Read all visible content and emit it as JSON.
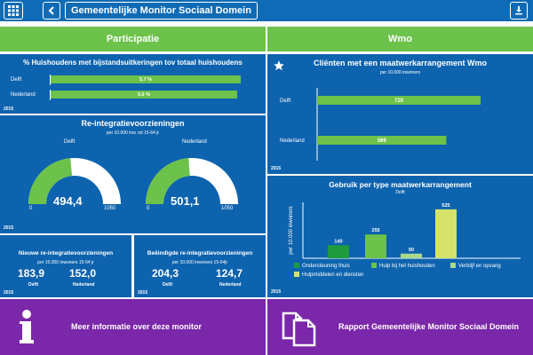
{
  "header": {
    "title": "Gemeentelijke Monitor Sociaal Domein",
    "menu_icon": "grid-icon",
    "back_icon": "chevron-left-icon",
    "download_icon": "download-icon"
  },
  "sections": {
    "participatie": "Participatie",
    "wmo": "Wmo"
  },
  "huishoudens": {
    "title": "% Huishoudens met bijstandsuitkeringen tov totaal huishoudens",
    "year": "2015",
    "rows": [
      {
        "label": "Delft",
        "value": "5,7 %",
        "fraction": 0.057
      },
      {
        "label": "Nederland",
        "value": "5,6 %",
        "fraction": 0.056
      }
    ]
  },
  "reintegratie": {
    "title": "Re-integratievoorzieningen",
    "subtitle": "per 10.000 inw. tot 15-64 jr",
    "year": "2015",
    "gauges": [
      {
        "name": "Delft",
        "value": "494,4",
        "numeric": 494.4,
        "min": "0",
        "max": "1050"
      },
      {
        "name": "Nederland",
        "value": "501,1",
        "numeric": 501.1,
        "min": "0",
        "max": "1050"
      }
    ]
  },
  "nieuwe": {
    "title": "Nieuwe re-integratievoorzieningen",
    "subtitle": "per 10.000 inwoners 15-64 jr",
    "year": "2015",
    "values": [
      {
        "value": "183,9",
        "label": "Delft"
      },
      {
        "value": "152,0",
        "label": "Nederland"
      }
    ]
  },
  "beeindigde": {
    "title": "Beëindigde re-integratievoorzieningen",
    "subtitle": "per 10.000 inwoners 15-64jr",
    "year": "2015",
    "values": [
      {
        "value": "204,3",
        "label": "Delft"
      },
      {
        "value": "124,7",
        "label": "Nederland"
      }
    ]
  },
  "clienten": {
    "title": "Cliënten met een maatwerkarrangement Wmo",
    "subtitle": "per 10.000 inwoners",
    "year": "2015",
    "star_icon": "star-icon"
  },
  "gebruik": {
    "title": "Gebruik per type maatwerkarrangement",
    "subtitle": "Delft",
    "year": "2015"
  },
  "bottom": {
    "info_label": "Meer informatie over deze monitor",
    "info_icon": "info-icon",
    "report_label": "Rapport Gemeentelijke Monitor Sociaal Domein",
    "report_icon": "documents-icon"
  },
  "colors": {
    "topbar": "#0f6bb5",
    "panel": "#0d63ae",
    "green": "#6cc24a",
    "yellow": "#d5e36b",
    "purple": "#7b27a9"
  },
  "chart_data": [
    {
      "type": "bar",
      "orientation": "horizontal",
      "title": "Cliënten met een maatwerkarrangement Wmo",
      "subtitle": "per 10.000 inwoners",
      "categories": [
        "Delft",
        "Nederland"
      ],
      "values": [
        720,
        569
      ],
      "xlim": [
        0,
        900
      ]
    },
    {
      "type": "bar",
      "title": "Gebruik per type maatwerkarrangement",
      "subtitle": "Delft",
      "ylabel": "per 10.000 inwoners",
      "categories": [
        "Ondersteuning thuis",
        "Hulp bij het huishouden",
        "Verblijf en opvang",
        "Hulpmiddelen en diensten"
      ],
      "values": [
        140,
        255,
        50,
        525
      ],
      "colors": [
        "#1f9b3e",
        "#6cc24a",
        "#a8d98a",
        "#d5e36b"
      ],
      "ylim": [
        0,
        600
      ],
      "legend": "bottom"
    }
  ]
}
